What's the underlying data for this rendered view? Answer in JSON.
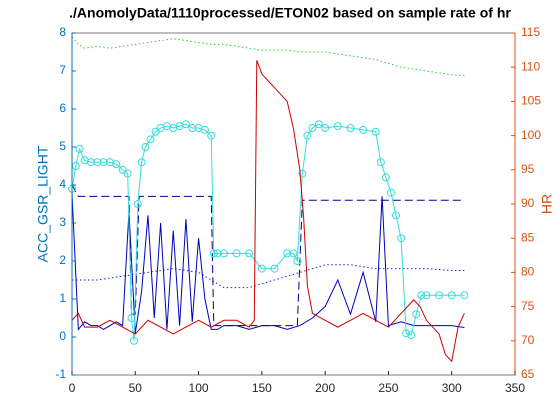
{
  "chart_data": {
    "type": "line",
    "title": "./AnomolyData/1110processed/ETON02 based on sample rate of hr",
    "ylabel": "ACC_GSR_LIGHT",
    "y2label": "HR",
    "xlim": [
      0,
      350
    ],
    "xticks": [
      0,
      50,
      100,
      150,
      200,
      250,
      300,
      350
    ],
    "ylim": [
      -1,
      8
    ],
    "yticks": [
      -1,
      0,
      1,
      2,
      3,
      4,
      5,
      6,
      7,
      8
    ],
    "ycolor": "#0072bd",
    "y2lim": [
      65,
      115
    ],
    "y2ticks": [
      65,
      70,
      75,
      80,
      85,
      90,
      95,
      100,
      105,
      110,
      115
    ],
    "y2color": "#d95319",
    "series": [
      {
        "color": "#22cc22",
        "style": "dotted",
        "x": [
          0,
          5,
          10,
          20,
          30,
          40,
          50,
          60,
          70,
          80,
          90,
          100,
          110,
          120,
          130,
          140,
          150,
          160,
          170,
          180,
          190,
          200,
          210,
          220,
          230,
          240,
          250,
          260,
          270,
          280,
          290,
          300,
          310
        ],
        "values": [
          7.9,
          7.7,
          7.6,
          7.65,
          7.6,
          7.65,
          7.7,
          7.75,
          7.8,
          7.85,
          7.8,
          7.75,
          7.7,
          7.7,
          7.65,
          7.6,
          7.55,
          7.55,
          7.55,
          7.5,
          7.5,
          7.5,
          7.45,
          7.4,
          7.35,
          7.3,
          7.2,
          7.1,
          7.05,
          7.0,
          6.95,
          6.9,
          6.88
        ]
      },
      {
        "color": "#1f1fdd",
        "style": "dotted",
        "x": [
          0,
          20,
          40,
          60,
          80,
          100,
          120,
          140,
          160,
          180,
          200,
          220,
          240,
          260,
          280,
          300,
          310
        ],
        "values": [
          1.5,
          1.5,
          1.6,
          1.7,
          1.8,
          1.7,
          1.3,
          1.3,
          1.5,
          1.7,
          1.9,
          1.9,
          1.8,
          1.8,
          1.8,
          1.75,
          1.75
        ]
      },
      {
        "color": "#0000bb",
        "style": "solid",
        "x": [
          0,
          5,
          10,
          15,
          20,
          25,
          30,
          35,
          40,
          45,
          50,
          55,
          60,
          65,
          70,
          75,
          80,
          85,
          90,
          95,
          100,
          105,
          110,
          115,
          120,
          130,
          140,
          150,
          160,
          170,
          180,
          190,
          200,
          210,
          220,
          230,
          240,
          245,
          250,
          260,
          270,
          280,
          290,
          300,
          310
        ],
        "values": [
          3.8,
          0.2,
          0.4,
          0.3,
          0.3,
          0.2,
          0.3,
          0.4,
          0.3,
          3.3,
          0.1,
          1.2,
          3.2,
          0.5,
          3.0,
          0.2,
          2.8,
          0.3,
          3.1,
          0.4,
          2.6,
          1.0,
          0.2,
          0.2,
          0.3,
          0.3,
          0.2,
          0.3,
          0.3,
          0.2,
          0.3,
          0.5,
          0.8,
          1.5,
          0.6,
          1.7,
          0.4,
          3.7,
          0.3,
          0.4,
          0.3,
          0.3,
          0.3,
          0.3,
          0.25
        ]
      },
      {
        "color": "#00008b",
        "style": "dashed",
        "x": [
          0,
          5,
          45,
          47,
          50,
          53,
          110,
          112,
          175,
          178,
          182,
          245,
          250,
          310
        ],
        "values": [
          4.0,
          3.7,
          3.7,
          0.6,
          0.6,
          3.7,
          3.7,
          0.3,
          0.3,
          0.3,
          3.6,
          3.6,
          3.6,
          3.6
        ]
      },
      {
        "color": "#33dddd",
        "style": "solid",
        "marker": "circle",
        "x": [
          0,
          3,
          6,
          10,
          15,
          20,
          25,
          30,
          35,
          40,
          44,
          47,
          49,
          52,
          55,
          58,
          62,
          66,
          70,
          75,
          80,
          85,
          90,
          95,
          100,
          105,
          110,
          112,
          115,
          120,
          130,
          140,
          150,
          160,
          170,
          175,
          178,
          182,
          186,
          190,
          195,
          200,
          210,
          220,
          230,
          240,
          244,
          248,
          252,
          256,
          260,
          264,
          268,
          272,
          276,
          280,
          290,
          300,
          310
        ],
        "values": [
          3.9,
          4.5,
          4.95,
          4.65,
          4.6,
          4.6,
          4.6,
          4.6,
          4.55,
          4.4,
          4.3,
          0.5,
          -0.1,
          3.5,
          4.6,
          5.0,
          5.2,
          5.4,
          5.5,
          5.55,
          5.5,
          5.55,
          5.6,
          5.5,
          5.5,
          5.45,
          5.3,
          2.2,
          2.2,
          2.2,
          2.2,
          2.2,
          1.8,
          1.8,
          2.2,
          2.2,
          2.0,
          4.3,
          5.3,
          5.5,
          5.6,
          5.5,
          5.55,
          5.5,
          5.45,
          5.4,
          4.6,
          4.2,
          3.8,
          3.2,
          2.6,
          0.1,
          0.05,
          0.6,
          1.1,
          1.1,
          1.1,
          1.1,
          1.1
        ]
      },
      {
        "color": "#cc0000",
        "style": "solid",
        "axis": "y2",
        "x": [
          0,
          5,
          10,
          20,
          30,
          40,
          50,
          60,
          70,
          80,
          90,
          100,
          110,
          120,
          130,
          140,
          144,
          146,
          150,
          155,
          160,
          165,
          170,
          175,
          180,
          183,
          186,
          190,
          200,
          210,
          220,
          230,
          240,
          250,
          260,
          265,
          270,
          275,
          280,
          290,
          295,
          300,
          305,
          310
        ],
        "values": [
          73,
          74,
          72,
          72,
          73,
          72,
          71,
          73,
          72,
          71,
          72,
          73,
          72,
          73,
          73,
          72,
          73,
          111,
          109,
          108,
          107,
          106,
          105,
          101,
          95,
          88,
          78,
          74,
          73,
          72,
          73,
          74,
          73,
          72,
          74,
          75,
          76,
          75,
          73,
          71,
          68,
          67,
          72,
          74
        ]
      }
    ]
  }
}
